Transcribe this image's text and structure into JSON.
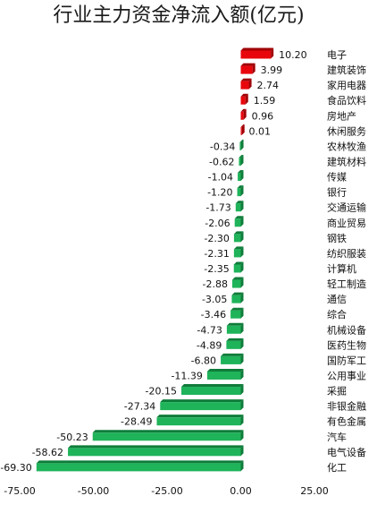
{
  "chart_data": {
    "type": "bar",
    "orientation": "horizontal",
    "title": "行业主力资金净流入额(亿元)",
    "categories": [
      "电子",
      "建筑装饰",
      "家用电器",
      "食品饮料",
      "房地产",
      "休闲服务",
      "农林牧渔",
      "建筑材料",
      "传媒",
      "银行",
      "交通运输",
      "商业贸易",
      "钢铁",
      "纺织服装",
      "计算机",
      "轻工制造",
      "通信",
      "综合",
      "机械设备",
      "医药生物",
      "国防军工",
      "公用事业",
      "采掘",
      "非银金融",
      "有色金属",
      "汽车",
      "电气设备",
      "化工"
    ],
    "values": [
      10.2,
      3.99,
      2.74,
      1.59,
      0.96,
      0.01,
      -0.34,
      -0.62,
      -1.04,
      -1.2,
      -1.73,
      -2.06,
      -2.3,
      -2.31,
      -2.35,
      -2.88,
      -3.05,
      -3.46,
      -4.73,
      -4.89,
      -6.8,
      -11.39,
      -20.15,
      -27.34,
      -28.49,
      -50.23,
      -58.62,
      -69.3
    ],
    "value_labels": [
      "10.20",
      "3.99",
      "2.74",
      "1.59",
      "0.96",
      "0.01",
      "-0.34",
      "-0.62",
      "-1.04",
      "-1.20",
      "-1.73",
      "-2.06",
      "-2.30",
      "-2.31",
      "-2.35",
      "-2.88",
      "-3.05",
      "-3.46",
      "-4.73",
      "-4.89",
      "-6.80",
      "-11.39",
      "-20.15",
      "-27.34",
      "-28.49",
      "-50.23",
      "-58.62",
      "-69.30"
    ],
    "xlim": [
      -75,
      25
    ],
    "x_ticks": [
      -75,
      -50,
      -25,
      0,
      25
    ],
    "x_tick_labels": [
      "-75.00",
      "-50.00",
      "-25.00",
      "0.00",
      "25.00"
    ],
    "grid": false,
    "legend": "none",
    "colors": {
      "positive": "#e8060c",
      "positive_dark": "#a00004",
      "negative": "#1fb35a",
      "negative_dark": "#0f7c3a",
      "text": "#111111"
    }
  }
}
